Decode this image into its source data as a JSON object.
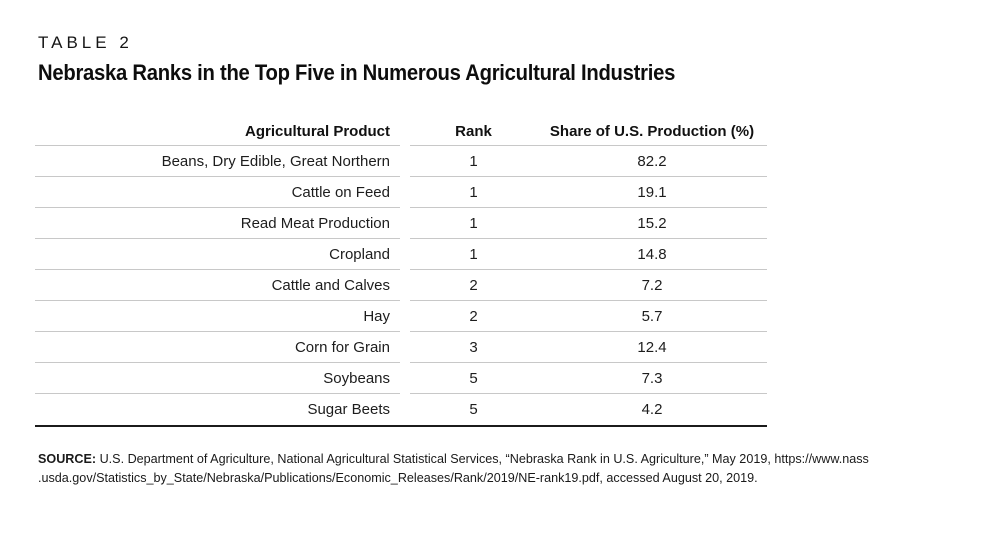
{
  "header": {
    "table_label": "TABLE 2",
    "title": "Nebraska Ranks in the Top Five in Numerous Agricultural Industries"
  },
  "chart_data": {
    "type": "table",
    "title": "Nebraska Ranks in the Top Five in Numerous Agricultural Industries",
    "columns": [
      "Agricultural Product",
      "Rank",
      "Share of U.S. Production (%)"
    ],
    "rows": [
      {
        "product": "Beans, Dry Edible, Great Northern",
        "rank": "1",
        "share": "82.2"
      },
      {
        "product": "Cattle on Feed",
        "rank": "1",
        "share": "19.1"
      },
      {
        "product": "Read Meat Production",
        "rank": "1",
        "share": "15.2"
      },
      {
        "product": "Cropland",
        "rank": "1",
        "share": "14.8"
      },
      {
        "product": "Cattle and Calves",
        "rank": "2",
        "share": "7.2"
      },
      {
        "product": "Hay",
        "rank": "2",
        "share": "5.7"
      },
      {
        "product": "Corn for Grain",
        "rank": "3",
        "share": "12.4"
      },
      {
        "product": "Soybeans",
        "rank": "5",
        "share": "7.3"
      },
      {
        "product": "Sugar Beets",
        "rank": "5",
        "share": "4.2"
      }
    ]
  },
  "source": {
    "label": "SOURCE:",
    "line1": " U.S. Department of Agriculture, National Agricultural Statistical Services, “Nebraska Rank in U.S. Agriculture,” May 2019, https://www.nass",
    "line2": ".usda.gov/Statistics_by_State/Nebraska/Publications/Economic_Releases/Rank/2019/NE-rank19.pdf, accessed August 20, 2019."
  },
  "colors": {
    "text": "#1d1d1d",
    "row_divider": "#c8c8c8",
    "bottom_rule": "#1b1b1b",
    "background": "#ffffff"
  }
}
